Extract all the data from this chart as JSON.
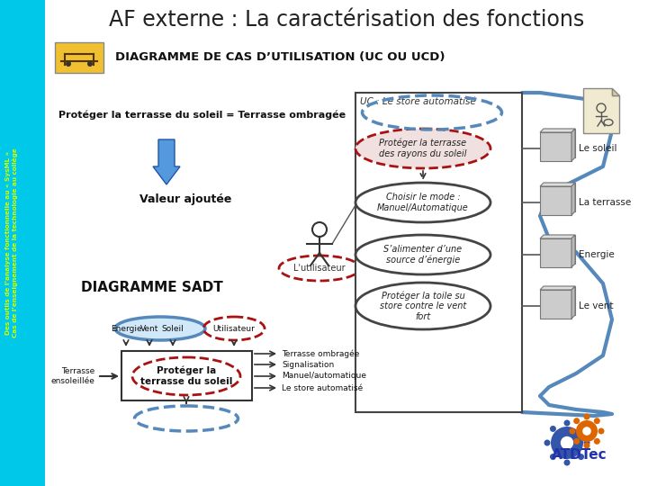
{
  "title": "AF externe : La caractérisation des fonctions",
  "subtitle": "DIAGRAMME DE CAS D’UTILISATION (UC OU UCD)",
  "sidebar_text": "Des outils de l’analyse fonctionnelle au « SysML »\nCas de l’enseignement de la technologie au collège",
  "sidebar_bg": "#00C8E8",
  "sidebar_fg": "#CCFF00",
  "main_bg": "#FFFFFF",
  "title_color": "#222222",
  "left_text1": "Protéger la terrasse du soleil = Terrasse ombragée",
  "left_text2": "Valeur ajoutée",
  "sadt_title": "DIAGRAMME SADT",
  "uc_box_label": "UC : Le store automatisé",
  "use_cases": [
    "Protéger la terrasse\ndes rayons du soleil",
    "Choisir le mode :\nManuel/Automatique",
    "S’alimenter d’une\nsource d’énergie",
    "Protéger la toile su\nstore contre le vent\nfort"
  ],
  "actors": [
    "Le soleil",
    "La terrasse",
    "Energie",
    "Le vent"
  ],
  "sadt_inputs_top": [
    "Energie",
    "Vent",
    "Soleil",
    "Utilisateur"
  ],
  "sadt_input_left": "Terrasse\nensoleillée",
  "sadt_box_label": "Protéger la\nterrasse du soleil",
  "sadt_outputs": [
    "Terrasse ombragée",
    "Signalisation",
    "Manuel/automatique",
    "Le store automatisé"
  ],
  "blue_dashed": "#5588BB",
  "red_dashed": "#AA1111",
  "arrow_blue": "#4477CC",
  "gray_box": "#BBBBBB"
}
